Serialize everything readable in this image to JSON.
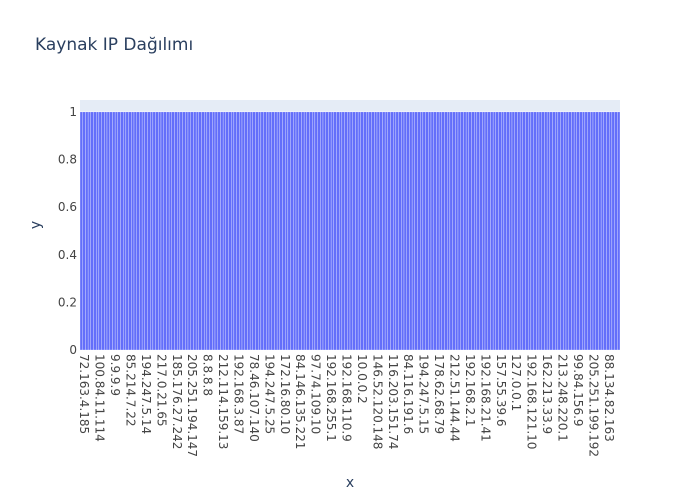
{
  "chart_data": {
    "type": "bar",
    "title": "Kaynak IP Dağılımı",
    "xlabel": "x",
    "ylabel": "y",
    "ylim": [
      0,
      1.05
    ],
    "yticks": [
      0,
      0.2,
      0.4,
      0.6,
      0.8,
      1
    ],
    "ytick_labels": [
      "0",
      "0.2",
      "0.4",
      "0.6",
      "0.8",
      "1"
    ],
    "bar_count": 200,
    "bar_value": 1,
    "x_tick_labels": [
      "72.163.4.185",
      "100.84.11.114",
      "9.9.9.9",
      "85.214.7.22",
      "194.247.5.14",
      "217.0.21.65",
      "185.176.27.242",
      "205.251.194.147",
      "8.8.8.8",
      "212.114.159.13",
      "192.168.3.87",
      "78.46.107.140",
      "194.247.5.25",
      "172.16.80.10",
      "84.146.135.221",
      "97.74.109.10",
      "192.168.255.1",
      "192.168.110.9",
      "10.0.0.2",
      "146.52.120.148",
      "116.203.151.74",
      "84.116.191.6",
      "194.247.5.15",
      "178.62.68.79",
      "212.51.144.44",
      "192.168.2.1",
      "192.168.21.41",
      "157.55.39.6",
      "127.0.0.1",
      "192.168.121.10",
      "162.213.33.9",
      "213.248.220.1",
      "99.84.156.9",
      "205.251.199.192",
      "88.134.82.163"
    ],
    "colors": {
      "bar_fill": "#636efa",
      "bar_edge": "#ffffff",
      "plot_bg": "#e5ecf6",
      "grid": "#ffffff",
      "text": "#2a3f5f",
      "tick_text": "#444444"
    }
  }
}
